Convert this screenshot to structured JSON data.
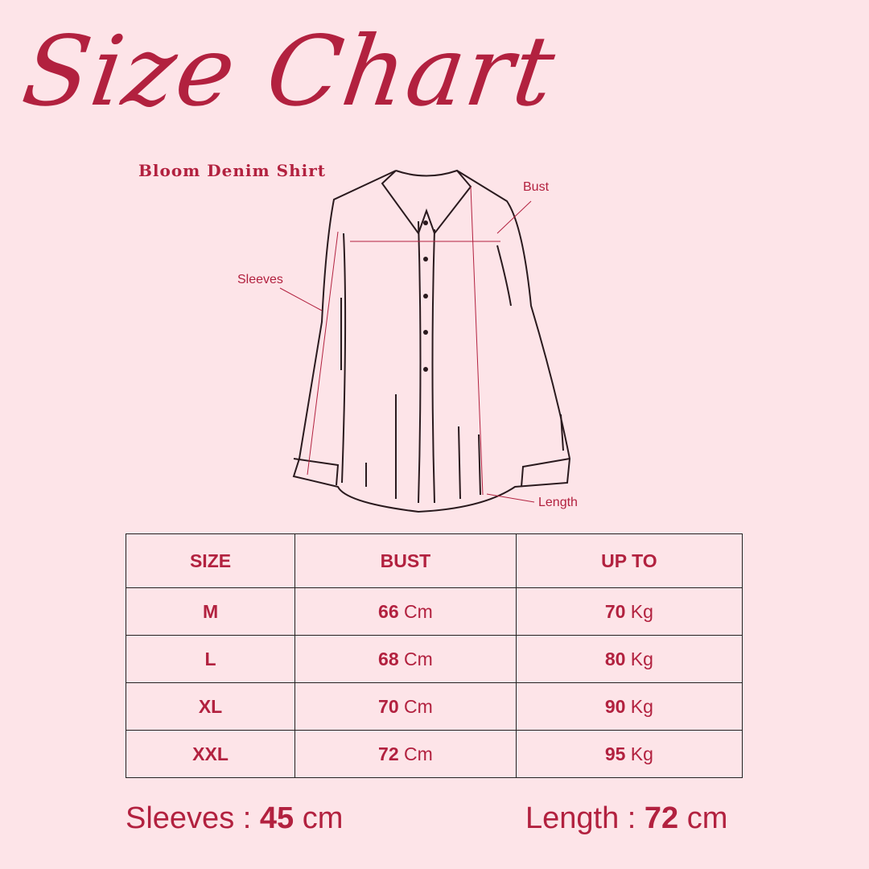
{
  "title": "Size Chart",
  "subtitle": "Bloom Denim Shirt",
  "diagram_labels": {
    "bust": "Bust",
    "sleeves": "Sleeves",
    "length": "Length"
  },
  "table": {
    "headers": [
      "SIZE",
      "BUST",
      "UP TO"
    ],
    "rows": [
      {
        "size": "M",
        "bust": "66",
        "bust_unit": "Cm",
        "upto": "70",
        "upto_unit": "Kg"
      },
      {
        "size": "L",
        "bust": "68",
        "bust_unit": "Cm",
        "upto": "80",
        "upto_unit": "Kg"
      },
      {
        "size": "XL",
        "bust": "70",
        "bust_unit": "Cm",
        "upto": "90",
        "upto_unit": "Kg"
      },
      {
        "size": "XXL",
        "bust": "72",
        "bust_unit": "Cm",
        "upto": "95",
        "upto_unit": "Kg"
      }
    ]
  },
  "footer": {
    "sleeves_label": "Sleeves :",
    "sleeves_value": "45",
    "sleeves_unit": "cm",
    "length_label": "Length :",
    "length_value": "72",
    "length_unit": "cm"
  },
  "colors": {
    "background": "#fde4e8",
    "accent": "#b2213f"
  }
}
